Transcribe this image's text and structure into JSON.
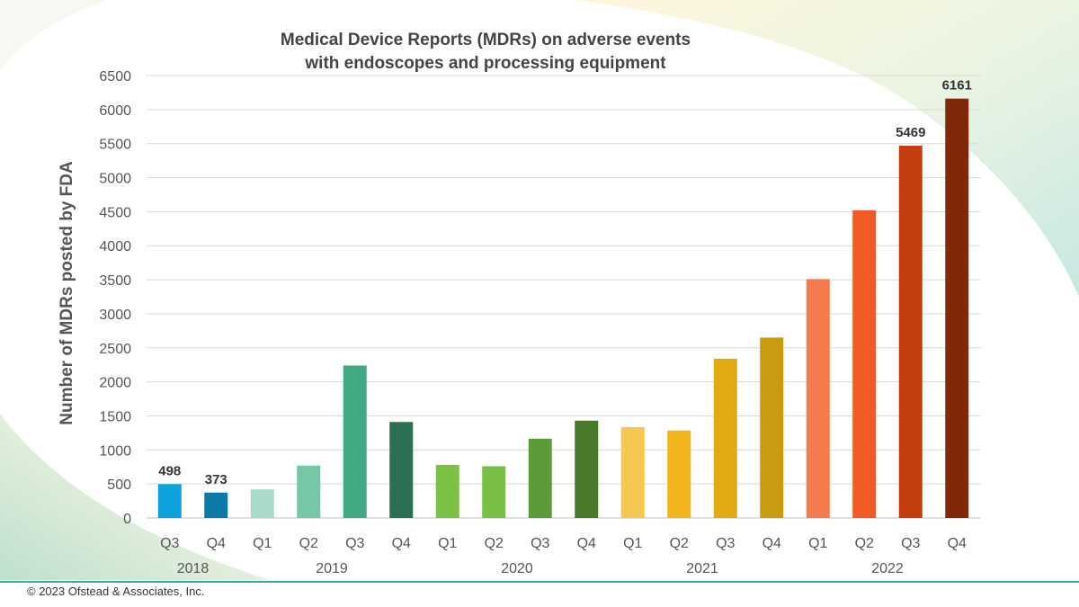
{
  "chart_data": {
    "type": "bar",
    "title": "Medical Device Reports (MDRs) on adverse events with endoscopes and processing equipment",
    "title_lines": [
      "Medical Device Reports (MDRs) on adverse events",
      "with endoscopes and processing equipment"
    ],
    "ylabel": "Number of MDRs posted by FDA",
    "xlabel": "",
    "ylim": [
      0,
      6500
    ],
    "yticks": [
      0,
      500,
      1000,
      1500,
      2000,
      2500,
      3000,
      3500,
      4000,
      4500,
      5000,
      5500,
      6000,
      6500
    ],
    "grid": true,
    "categories": [
      "Q3",
      "Q4",
      "Q1",
      "Q2",
      "Q3",
      "Q4",
      "Q1",
      "Q2",
      "Q3",
      "Q4",
      "Q1",
      "Q2",
      "Q3",
      "Q4",
      "Q1",
      "Q2",
      "Q3",
      "Q4"
    ],
    "years": [
      {
        "label": "2018",
        "start": 0,
        "end": 1
      },
      {
        "label": "2019",
        "start": 2,
        "end": 5
      },
      {
        "label": "2020",
        "start": 6,
        "end": 9
      },
      {
        "label": "2021",
        "start": 10,
        "end": 13
      },
      {
        "label": "2022",
        "start": 14,
        "end": 17
      }
    ],
    "values": [
      498,
      373,
      420,
      770,
      2240,
      1410,
      780,
      760,
      1165,
      1430,
      1335,
      1285,
      2340,
      2650,
      3510,
      4520,
      5469,
      6161
    ],
    "data_labels": [
      {
        "index": 0,
        "text": "498"
      },
      {
        "index": 1,
        "text": "373"
      },
      {
        "index": 16,
        "text": "5469"
      },
      {
        "index": 17,
        "text": "6161"
      }
    ],
    "colors": [
      "#0ea3dc",
      "#0b7aa6",
      "#a8dcc9",
      "#76c7a5",
      "#43a982",
      "#2b7053",
      "#7bc143",
      "#78bf46",
      "#5c9b37",
      "#487a2a",
      "#f6c851",
      "#f1b51c",
      "#e3a914",
      "#c99b10",
      "#f47b4e",
      "#f05a24",
      "#c43d0c",
      "#80290a"
    ]
  },
  "footer": {
    "copyright": "© 2023 Ofstead & Associates, Inc.",
    "accent_color": "#3aa7a1"
  }
}
